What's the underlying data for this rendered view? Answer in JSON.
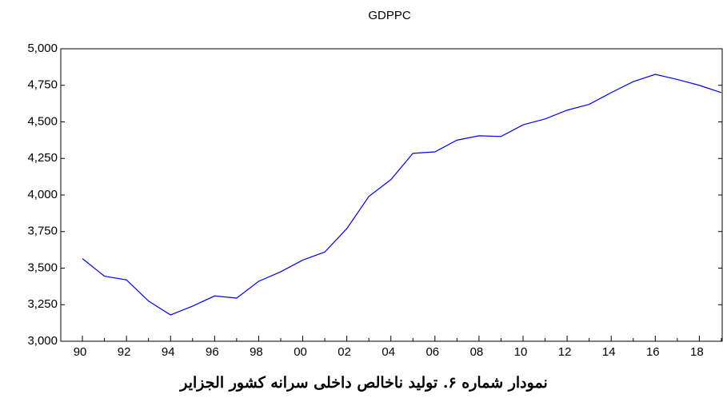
{
  "chart_data": {
    "type": "line",
    "title": "GDPPC",
    "caption": "نمودار شماره ۶. تولید ناخالص داخلی سرانه کشور الجزایر",
    "categories": [
      "90",
      null,
      "92",
      null,
      "94",
      null,
      "96",
      null,
      "98",
      null,
      "00",
      null,
      "02",
      null,
      "04",
      null,
      "06",
      null,
      "08",
      null,
      "10",
      null,
      "12",
      null,
      "14",
      null,
      "16",
      null,
      "18",
      null
    ],
    "series": [
      {
        "name": "GDPPC",
        "color": "#0000ff",
        "values": [
          3565,
          3445,
          3420,
          3275,
          3180,
          3240,
          3310,
          3295,
          3410,
          3475,
          3555,
          3610,
          3770,
          3990,
          4105,
          4285,
          4295,
          4375,
          4405,
          4400,
          4480,
          4520,
          4580,
          4620,
          4700,
          4775,
          4825,
          4790,
          4750,
          4700
        ]
      }
    ],
    "ylim": [
      3000,
      5000
    ],
    "yticks": [
      {
        "value": 3000,
        "label": "3,000"
      },
      {
        "value": 3250,
        "label": "3,250"
      },
      {
        "value": 3500,
        "label": "3,500"
      },
      {
        "value": 3750,
        "label": "3,750"
      },
      {
        "value": 4000,
        "label": "4,000"
      },
      {
        "value": 4250,
        "label": "4,250"
      },
      {
        "value": 4500,
        "label": "4,500"
      },
      {
        "value": 4750,
        "label": "4,750"
      },
      {
        "value": 5000,
        "label": "5,000"
      }
    ],
    "grid": false
  }
}
